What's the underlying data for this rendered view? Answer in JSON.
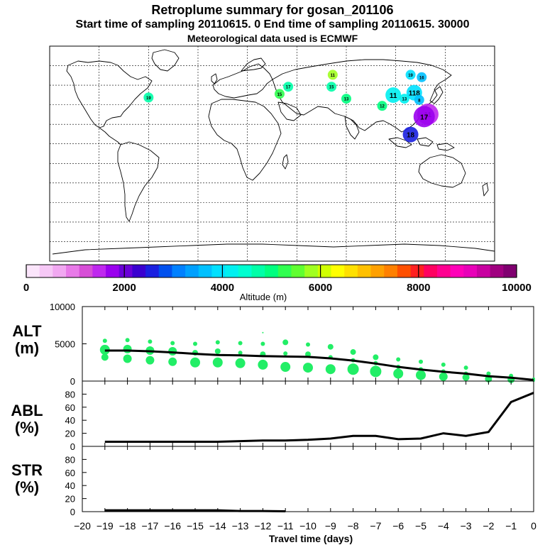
{
  "header": {
    "title": "Retroplume summary for gosan_201106",
    "sampling": "Start time of sampling 20110615.    0     End time of sampling 20110615. 30000",
    "met": "Meteorological data used is ECMWF"
  },
  "colors": {
    "marker": "#22ee66",
    "line": "#000000"
  },
  "chart_data": [
    {
      "type": "map",
      "title": "Retroplume summary for gosan_201106",
      "colorbar": {
        "label": "Altitude (m)",
        "ticks": [
          0,
          2000,
          4000,
          6000,
          8000,
          10000
        ],
        "tick_labels": [
          "0",
          "2000",
          "4000",
          "6000",
          "8000",
          "10000"
        ],
        "range": [
          0,
          10000
        ],
        "colors": [
          "#fbe5fb",
          "#f6c8f6",
          "#f1a8f1",
          "#e87ae8",
          "#d74ed7",
          "#bf28ee",
          "#9a00ee",
          "#6a00d8",
          "#3a00d0",
          "#1a20e0",
          "#0050ee",
          "#0080ff",
          "#00a0ff",
          "#00c0ff",
          "#00e0ff",
          "#00f0f0",
          "#00ffd0",
          "#00ffa8",
          "#00ff80",
          "#30ff50",
          "#60ff30",
          "#a0ff20",
          "#d0ff00",
          "#ffff00",
          "#ffe000",
          "#ffc000",
          "#ffa000",
          "#ff8000",
          "#ff5000",
          "#ff2020",
          "#ff0060",
          "#ff0090",
          "#ff00b8",
          "#e800b8",
          "#c800a0",
          "#a00080",
          "#800070"
        ]
      },
      "clusters": [
        {
          "label": "11",
          "lon": 126,
          "lat": 33,
          "alt": 1500,
          "size": 3
        },
        {
          "label": "17",
          "lon": 123,
          "lat": 31,
          "alt": 1800,
          "size": 3
        },
        {
          "label": "18",
          "lon": 112,
          "lat": 16,
          "alt": 2600,
          "size": 2
        },
        {
          "label": "11",
          "lon": 98,
          "lat": 49,
          "alt": 4200,
          "size": 2
        },
        {
          "label": "118",
          "lon": 115,
          "lat": 51,
          "alt": 3900,
          "size": 2
        },
        {
          "label": "13",
          "lon": 107,
          "lat": 46,
          "alt": 4200,
          "size": 1
        },
        {
          "label": "8",
          "lon": 119,
          "lat": 45,
          "alt": 3600,
          "size": 1
        },
        {
          "label": "16",
          "lon": 121,
          "lat": 64,
          "alt": 3600,
          "size": 1
        },
        {
          "label": "19",
          "lon": 112,
          "lat": 66,
          "alt": 3800,
          "size": 1
        },
        {
          "label": "12",
          "lon": 89,
          "lat": 40,
          "alt": 5000,
          "size": 1
        },
        {
          "label": "15",
          "lon": 48,
          "lat": 56,
          "alt": 4800,
          "size": 1
        },
        {
          "label": "11",
          "lon": 49,
          "lat": 66,
          "alt": 5800,
          "size": 1
        },
        {
          "label": "17",
          "lon": 13,
          "lat": 56,
          "alt": 4700,
          "size": 1
        },
        {
          "label": "15",
          "lon": 6,
          "lat": 50,
          "alt": 5200,
          "size": 1
        },
        {
          "label": "13",
          "lon": 60,
          "lat": 46,
          "alt": 5000,
          "size": 1
        },
        {
          "label": "19",
          "lon": -100,
          "lat": 47,
          "alt": 4600,
          "size": 1
        }
      ]
    },
    {
      "type": "scatter+line",
      "panel": "ALT",
      "ylabel": "ALT\n(m)",
      "ylabel_lines": [
        "ALT",
        "(m)"
      ],
      "ylim": [
        0,
        10000
      ],
      "yticks": [
        0,
        5000,
        10000
      ],
      "ytick_labels": [
        "0",
        "5000",
        "10000"
      ],
      "x": [
        -19,
        -18,
        -17,
        -16,
        -15,
        -14,
        -13,
        -12,
        -11,
        -10,
        -9,
        -8,
        -7,
        -6,
        -5,
        -4,
        -3,
        -2,
        -1,
        0
      ],
      "mean_altitude": [
        4100,
        4100,
        4000,
        3850,
        3650,
        3500,
        3450,
        3350,
        3300,
        3250,
        3050,
        2750,
        2350,
        1900,
        1550,
        1250,
        1000,
        650,
        450,
        150
      ],
      "scatter": [
        {
          "x": -19,
          "points": [
            [
              5400,
              3
            ],
            [
              4200,
              7
            ],
            [
              3200,
              5
            ]
          ]
        },
        {
          "x": -18,
          "points": [
            [
              5500,
              3
            ],
            [
              4300,
              6
            ],
            [
              3000,
              6
            ]
          ]
        },
        {
          "x": -17,
          "points": [
            [
              5300,
              3
            ],
            [
              4100,
              6
            ],
            [
              2800,
              6
            ]
          ]
        },
        {
          "x": -16,
          "points": [
            [
              5100,
              3
            ],
            [
              4000,
              6
            ],
            [
              2600,
              6
            ]
          ]
        },
        {
          "x": -15,
          "points": [
            [
              5000,
              3
            ],
            [
              3800,
              4
            ],
            [
              2500,
              7
            ]
          ]
        },
        {
          "x": -14,
          "points": [
            [
              5200,
              3
            ],
            [
              4000,
              4
            ],
            [
              2500,
              7
            ]
          ]
        },
        {
          "x": -13,
          "points": [
            [
              5100,
              3
            ],
            [
              3800,
              3
            ],
            [
              2400,
              7
            ]
          ]
        },
        {
          "x": -12,
          "points": [
            [
              6500,
              1
            ],
            [
              5000,
              3
            ],
            [
              3600,
              4
            ],
            [
              2200,
              7
            ]
          ]
        },
        {
          "x": -11,
          "points": [
            [
              5200,
              4
            ],
            [
              3700,
              3
            ],
            [
              1900,
              7
            ]
          ]
        },
        {
          "x": -10,
          "points": [
            [
              4900,
              3
            ],
            [
              3600,
              4
            ],
            [
              1800,
              7
            ]
          ]
        },
        {
          "x": -9,
          "points": [
            [
              4600,
              4
            ],
            [
              3200,
              3
            ],
            [
              1600,
              7
            ]
          ]
        },
        {
          "x": -8,
          "points": [
            [
              3900,
              4
            ],
            [
              2800,
              3
            ],
            [
              1600,
              8
            ]
          ]
        },
        {
          "x": -7,
          "points": [
            [
              3200,
              4
            ],
            [
              2400,
              3
            ],
            [
              1300,
              8
            ]
          ]
        },
        {
          "x": -6,
          "points": [
            [
              2900,
              3
            ],
            [
              1900,
              3
            ],
            [
              1000,
              7
            ]
          ]
        },
        {
          "x": -5,
          "points": [
            [
              2600,
              3
            ],
            [
              1600,
              3
            ],
            [
              800,
              7
            ]
          ]
        },
        {
          "x": -4,
          "points": [
            [
              2200,
              3
            ],
            [
              1300,
              3
            ],
            [
              600,
              6
            ]
          ]
        },
        {
          "x": -3,
          "points": [
            [
              1800,
              3
            ],
            [
              1000,
              3
            ],
            [
              500,
              5
            ]
          ]
        },
        {
          "x": -2,
          "points": [
            [
              1000,
              3
            ],
            [
              600,
              3
            ],
            [
              300,
              5
            ]
          ]
        },
        {
          "x": -1,
          "points": [
            [
              700,
              3
            ],
            [
              400,
              3
            ],
            [
              200,
              5
            ]
          ]
        },
        {
          "x": 0,
          "points": [
            [
              300,
              2
            ],
            [
              100,
              2
            ]
          ]
        }
      ]
    },
    {
      "type": "line",
      "panel": "ABL",
      "ylabel": "ABL\n(%)",
      "ylabel_lines": [
        "ABL",
        "(%)"
      ],
      "ylim": [
        0,
        100
      ],
      "yticks": [
        0,
        20,
        40,
        60,
        80
      ],
      "ytick_labels": [
        "0",
        "20",
        "40",
        "60",
        "80"
      ],
      "x": [
        -19,
        -18,
        -17,
        -16,
        -15,
        -14,
        -13,
        -12,
        -11,
        -10,
        -9,
        -8,
        -7,
        -6,
        -5,
        -4,
        -3,
        -2,
        -1,
        0
      ],
      "values": [
        7,
        7,
        7,
        7,
        7,
        7,
        8,
        9,
        9,
        10,
        12,
        16,
        16,
        11,
        12,
        20,
        16,
        22,
        68,
        82
      ]
    },
    {
      "type": "line",
      "panel": "STR",
      "ylabel": "STR\n(%)",
      "ylabel_lines": [
        "STR",
        "(%)"
      ],
      "ylim": [
        0,
        100
      ],
      "yticks": [
        0,
        20,
        40,
        60,
        80
      ],
      "ytick_labels": [
        "0",
        "20",
        "40",
        "60",
        "80"
      ],
      "x": [
        -19,
        -18,
        -17,
        -16,
        -15,
        -14,
        -13,
        -12,
        -11
      ],
      "values": [
        2,
        2,
        2,
        2,
        2,
        2,
        1,
        1,
        0.5
      ],
      "xlabel": "Travel time (days)",
      "xticks": [
        -20,
        -19,
        -18,
        -17,
        -16,
        -15,
        -14,
        -13,
        -12,
        -11,
        -10,
        -9,
        -8,
        -7,
        -6,
        -5,
        -4,
        -3,
        -2,
        -1,
        0
      ],
      "xtick_labels": [
        "−20",
        "−19",
        "−18",
        "−17",
        "−16",
        "−15",
        "−14",
        "−13",
        "−12",
        "−11",
        "−10",
        "−9",
        "−8",
        "−7",
        "−6",
        "−5",
        "−4",
        "−3",
        "−2",
        "−1",
        "0"
      ]
    }
  ]
}
